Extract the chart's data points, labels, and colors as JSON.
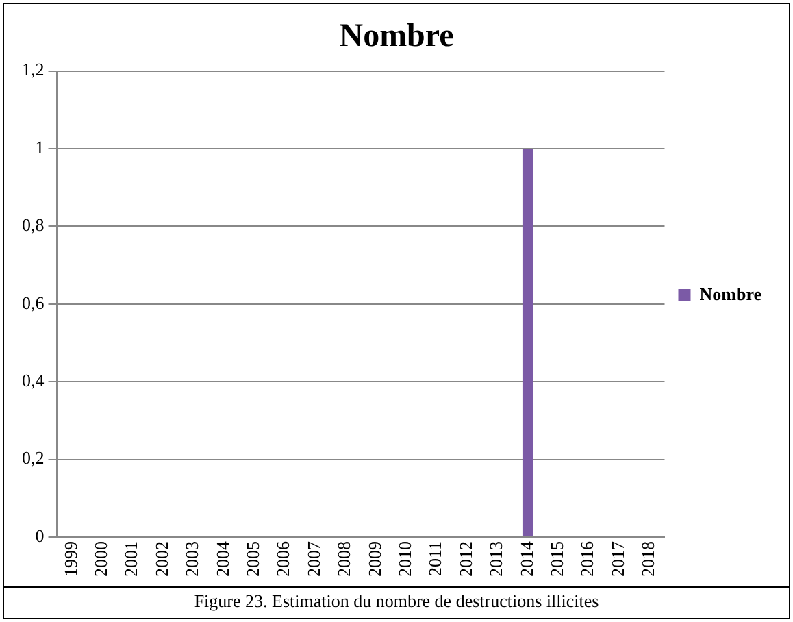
{
  "chart_data": {
    "type": "bar",
    "title": "Nombre",
    "categories": [
      "1999",
      "2000",
      "2001",
      "2002",
      "2003",
      "2004",
      "2005",
      "2006",
      "2007",
      "2008",
      "2009",
      "2010",
      "2011",
      "2012",
      "2013",
      "2014",
      "2015",
      "2016",
      "2017",
      "2018"
    ],
    "series": [
      {
        "name": "Nombre",
        "color": "#7b5aa6",
        "values": [
          0,
          0,
          0,
          0,
          0,
          0,
          0,
          0,
          0,
          0,
          0,
          0,
          0,
          0,
          0,
          1,
          0,
          0,
          0,
          0
        ]
      }
    ],
    "ylim": [
      0,
      1.2
    ],
    "yticks": [
      0,
      {
        "value": 0.2,
        "label": "0,2"
      },
      {
        "value": 0.4,
        "label": "0,4"
      },
      {
        "value": 0.6,
        "label": "0,6"
      },
      {
        "value": 0.8,
        "label": "0,8"
      },
      1,
      {
        "value": 1.2,
        "label": "1,2"
      }
    ],
    "grid": "y",
    "legend": "right",
    "annotations": [
      "Figure 23. Estimation du nombre de destructions illicites"
    ]
  }
}
